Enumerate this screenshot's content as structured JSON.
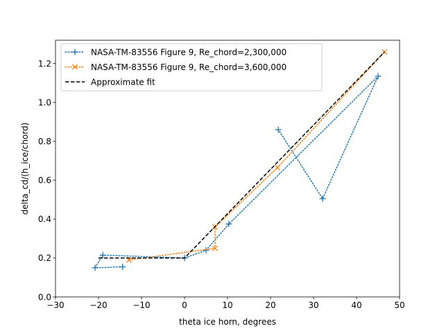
{
  "chart_data": {
    "type": "line",
    "title": "",
    "xlabel": "theta ice horn, degrees",
    "ylabel": "delta_cd/(h_ice/chord)",
    "xlim": [
      -30,
      50
    ],
    "ylim": [
      0.0,
      1.32
    ],
    "xticks": [
      -30,
      -20,
      -10,
      0,
      10,
      20,
      30,
      40,
      50
    ],
    "xtick_labels": [
      "−30",
      "−20",
      "−10",
      "0",
      "10",
      "20",
      "30",
      "40",
      "50"
    ],
    "yticks": [
      0.0,
      0.2,
      0.4,
      0.6,
      0.8,
      1.0,
      1.2
    ],
    "ytick_labels": [
      "0.0",
      "0.2",
      "0.4",
      "0.6",
      "0.8",
      "1.0",
      "1.2"
    ],
    "grid": false,
    "legend_position": "upper left",
    "series": [
      {
        "name": "NASA-TM-83556 Figure 9, Re_chord=2,300,000",
        "color": "#1f77b4",
        "linestyle": "dotted",
        "marker": "+",
        "x": [
          -14.4,
          -20.8,
          -19.0,
          0.0,
          5.0,
          10.3,
          45.0,
          32.1,
          21.8
        ],
        "y": [
          0.155,
          0.15,
          0.215,
          0.2,
          0.24,
          0.375,
          1.135,
          0.505,
          0.86
        ]
      },
      {
        "name": "NASA-TM-83556 Figure 9, Re_chord=3,600,000",
        "color": "#ff7f0e",
        "linestyle": "dotted",
        "marker": "x",
        "x": [
          -12.9,
          7.1,
          7.1,
          21.6,
          46.5
        ],
        "y": [
          0.19,
          0.25,
          0.36,
          0.665,
          1.26
        ]
      },
      {
        "name": "Approximate fit",
        "color": "#000000",
        "linestyle": "dashed",
        "marker": "",
        "x": [
          -20.0,
          0.0,
          46.5
        ],
        "y": [
          0.2,
          0.2,
          1.26
        ]
      }
    ]
  }
}
